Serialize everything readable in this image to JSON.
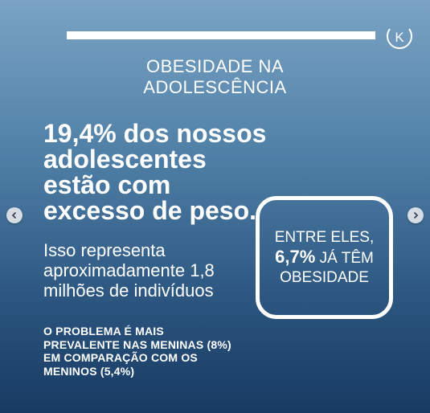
{
  "heading": {
    "line1": "OBESIDADE NA",
    "line2": "ADOLESCÊNCIA"
  },
  "headline": {
    "line1": "19,4% dos nossos",
    "line2": "adolescentes",
    "line3": "estão com",
    "line4": "excesso de peso."
  },
  "subtext": {
    "line1": "Isso representa",
    "line2": "aproximadamente 1,8",
    "line3": "milhões de indivíduos"
  },
  "note": {
    "line1": "O PROBLEMA É MAIS",
    "line2": "PREVALENTE NAS MENINAS (8%)",
    "line3": "EM COMPARAÇÃO COM OS",
    "line4": "MENINOS (5,4%)"
  },
  "callout": {
    "line1": "ENTRE ELES,",
    "emphasis": "6,7%",
    "line2_rest": " JÁ TÊM",
    "line3": "OBESIDADE"
  },
  "navigation": {
    "prev_icon": "chevron-left-icon",
    "next_icon": "chevron-right-icon"
  },
  "logo": {
    "letter": "K"
  },
  "colors": {
    "gradient_top": "#7aa3c4",
    "gradient_bottom": "#173a62",
    "text": "#ffffff",
    "nav_button": "#d6dce3"
  }
}
